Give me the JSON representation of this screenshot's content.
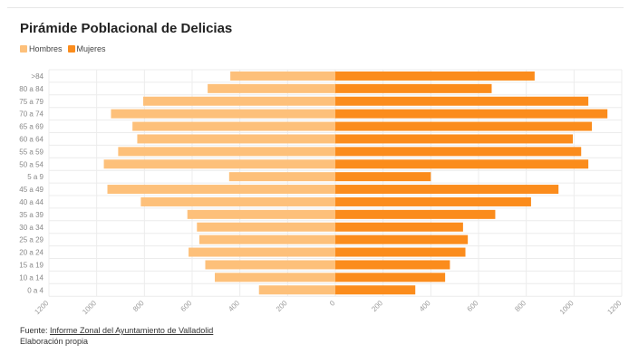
{
  "title": "Pirámide Poblacional de Delicias",
  "legend": {
    "items": [
      {
        "label": "Hombres",
        "color": "#fdc07a"
      },
      {
        "label": "Mujeres",
        "color": "#fb8c1c"
      }
    ]
  },
  "footer": {
    "source_prefix": "Fuente: ",
    "source_link": "Informe Zonal del Ayuntamiento de Valladolid",
    "note": "Elaboración propia"
  },
  "chart_data": {
    "type": "bar",
    "orientation": "horizontal",
    "categories": [
      ">84",
      "80 a 84",
      "75 a 79",
      "70 a 74",
      "65 a 69",
      "60 a 64",
      "55 a 59",
      "50 a 54",
      "5 a 9",
      "45 a 49",
      "40 a 44",
      "35 a 39",
      "30 a 34",
      "25 a 29",
      "20 a 24",
      "15 a 19",
      "10 a 14",
      "0 a 4"
    ],
    "series": [
      {
        "name": "Hombres",
        "color": "#fdc07a",
        "values": [
          440,
          535,
          805,
          940,
          850,
          830,
          910,
          970,
          445,
          955,
          815,
          620,
          580,
          570,
          615,
          545,
          505,
          320
        ]
      },
      {
        "name": "Mujeres",
        "color": "#fb8c1c",
        "values": [
          835,
          655,
          1060,
          1140,
          1075,
          995,
          1030,
          1060,
          400,
          935,
          820,
          670,
          535,
          555,
          545,
          480,
          460,
          335
        ]
      }
    ],
    "xlim": [
      -1200,
      1200
    ],
    "xticks": [
      -1200,
      -1000,
      -800,
      -600,
      -400,
      -200,
      0,
      200,
      400,
      600,
      800,
      1000,
      1200
    ],
    "xtick_labels": [
      "1200",
      "1000",
      "800",
      "600",
      "400",
      "200",
      "0",
      "200",
      "400",
      "600",
      "800",
      "1000",
      "1200"
    ],
    "grid": true,
    "legend_position": "top-left"
  }
}
